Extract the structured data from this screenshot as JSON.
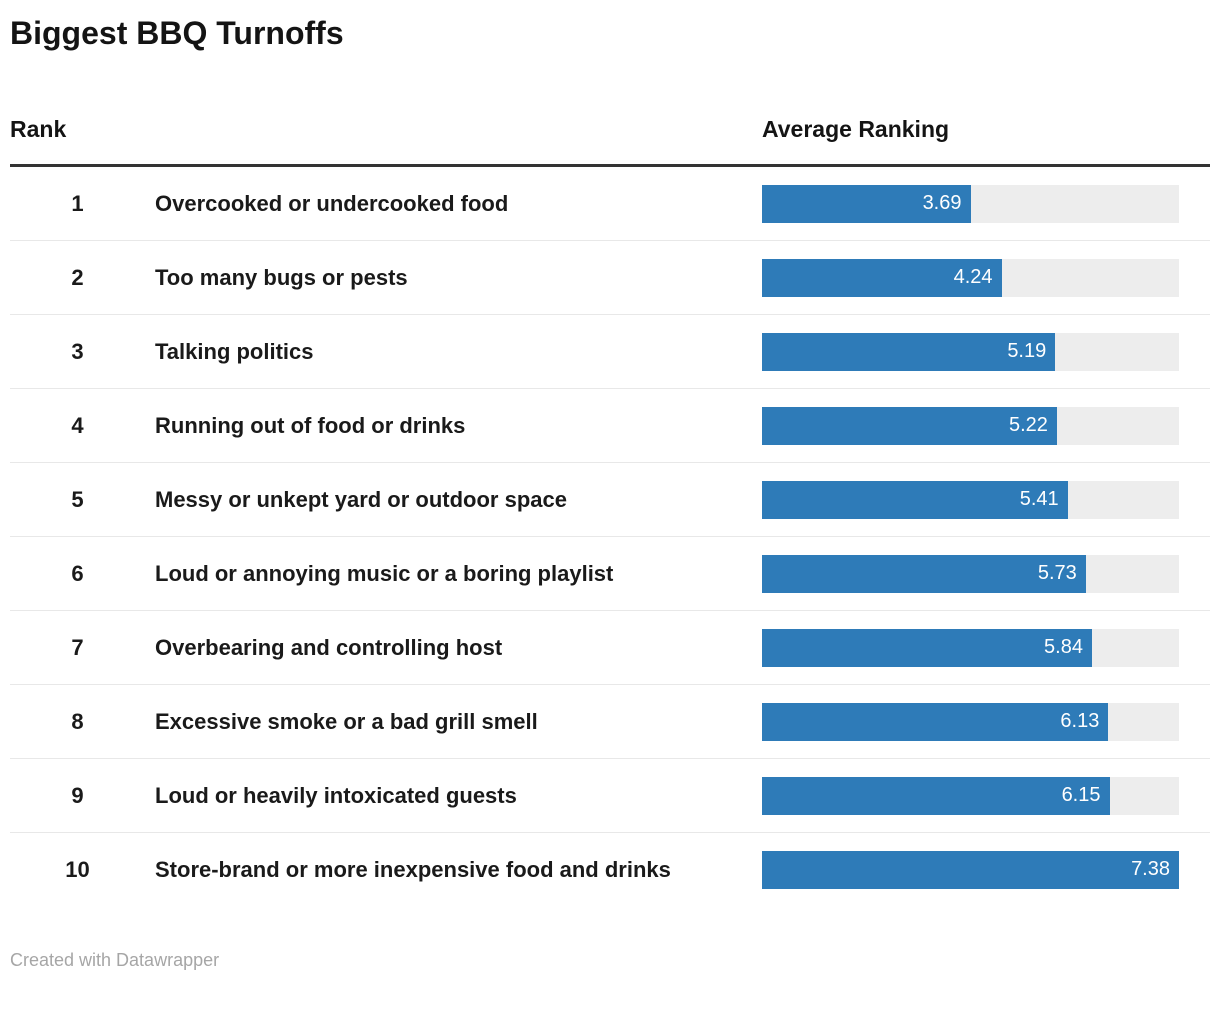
{
  "title": "Biggest BBQ Turnoffs",
  "columns": {
    "rank": "Rank",
    "value": "Average Ranking"
  },
  "footer": "Created with Datawrapper",
  "colors": {
    "bar_fill": "#2e7bb8",
    "bar_track": "#ededed",
    "header_rule": "#333333",
    "row_divider": "#e8e8e8",
    "text": "#141414",
    "value_text": "#ffffff",
    "footer_text": "#a6a6a6"
  },
  "scale_max": 7.38,
  "rows": [
    {
      "rank": "1",
      "label": "Overcooked or undercooked food",
      "value": 3.69,
      "value_label": "3.69"
    },
    {
      "rank": "2",
      "label": "Too many bugs or pests",
      "value": 4.24,
      "value_label": "4.24"
    },
    {
      "rank": "3",
      "label": "Talking politics",
      "value": 5.19,
      "value_label": "5.19"
    },
    {
      "rank": "4",
      "label": "Running out of food or drinks",
      "value": 5.22,
      "value_label": "5.22"
    },
    {
      "rank": "5",
      "label": "Messy or unkept yard or outdoor space",
      "value": 5.41,
      "value_label": "5.41"
    },
    {
      "rank": "6",
      "label": "Loud or annoying music or a boring playlist",
      "value": 5.73,
      "value_label": "5.73"
    },
    {
      "rank": "7",
      "label": "Overbearing and controlling host",
      "value": 5.84,
      "value_label": "5.84"
    },
    {
      "rank": "8",
      "label": "Excessive smoke or a bad grill smell",
      "value": 6.13,
      "value_label": "6.13"
    },
    {
      "rank": "9",
      "label": "Loud or heavily intoxicated guests",
      "value": 6.15,
      "value_label": "6.15"
    },
    {
      "rank": "10",
      "label": "Store-brand or more inexpensive food and drinks",
      "value": 7.38,
      "value_label": "7.38"
    }
  ],
  "chart_data": {
    "type": "bar",
    "orientation": "horizontal",
    "title": "Biggest BBQ Turnoffs",
    "value_column_header": "Average Ranking",
    "rank_column_header": "Rank",
    "categories": [
      "Overcooked or undercooked food",
      "Too many bugs or pests",
      "Talking politics",
      "Running out of food or drinks",
      "Messy or unkept yard or outdoor space",
      "Loud or annoying music or a boring playlist",
      "Overbearing and controlling host",
      "Excessive smoke or a bad grill smell",
      "Loud or heavily intoxicated guests",
      "Store-brand or more inexpensive food and drinks"
    ],
    "ranks": [
      1,
      2,
      3,
      4,
      5,
      6,
      7,
      8,
      9,
      10
    ],
    "values": [
      3.69,
      4.24,
      5.19,
      5.22,
      5.41,
      5.73,
      5.84,
      6.13,
      6.15,
      7.38
    ],
    "xlim": [
      0,
      7.38
    ],
    "grid": false,
    "legend": false,
    "data_labels": "inside-end, white",
    "source_note": "Created with Datawrapper"
  }
}
